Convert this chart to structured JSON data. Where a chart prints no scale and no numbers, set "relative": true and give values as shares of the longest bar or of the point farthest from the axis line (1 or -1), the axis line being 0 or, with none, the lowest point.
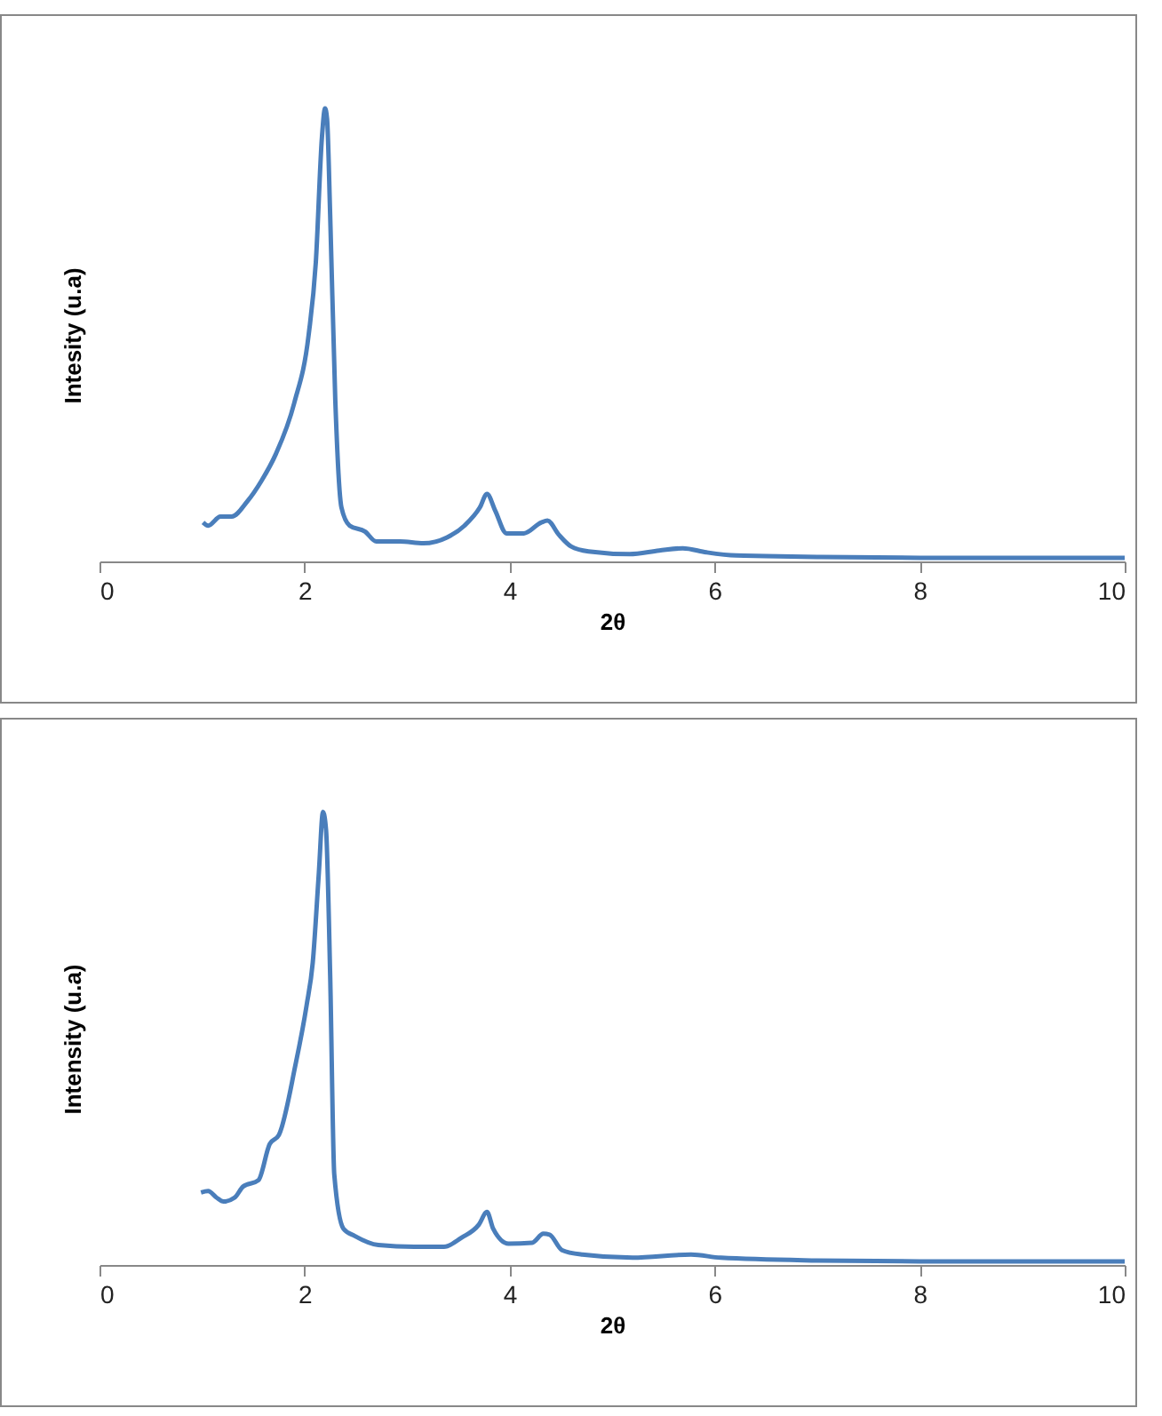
{
  "chart_data": [
    {
      "type": "line",
      "xlabel": "2θ",
      "ylabel": "Intesity (u.a)",
      "relative": true,
      "color": "#4a7ebb",
      "xlim": [
        0,
        10
      ],
      "xticks": [
        0,
        2,
        4,
        6,
        8,
        10
      ],
      "grid": false,
      "x": [
        1.01,
        1.06,
        1.18,
        1.29,
        1.44,
        1.58,
        1.72,
        1.9,
        2.04,
        2.11,
        2.17,
        2.2,
        2.22,
        2.25,
        2.3,
        2.36,
        2.44,
        2.59,
        2.7,
        2.93,
        3.16,
        3.39,
        3.56,
        3.71,
        3.78,
        3.86,
        3.97,
        4.14,
        4.31,
        4.37,
        4.48,
        4.6,
        4.77,
        5.17,
        5.46,
        5.69,
        5.92,
        6.21,
        6.5,
        7,
        8,
        9,
        10
      ],
      "values": [
        0.086,
        0.079,
        0.099,
        0.099,
        0.132,
        0.178,
        0.237,
        0.35,
        0.5,
        0.66,
        0.937,
        1,
        0.976,
        0.765,
        0.356,
        0.119,
        0.079,
        0.066,
        0.044,
        0.044,
        0.04,
        0.053,
        0.079,
        0.119,
        0.149,
        0.112,
        0.062,
        0.062,
        0.086,
        0.09,
        0.059,
        0.033,
        0.022,
        0.016,
        0.024,
        0.029,
        0.02,
        0.013,
        0.012,
        0.01,
        0.008,
        0.008,
        0.008
      ]
    },
    {
      "type": "line",
      "xlabel": "2θ",
      "ylabel": "Intensity (u.a)",
      "relative": true,
      "color": "#4a7ebb",
      "xlim": [
        0,
        10
      ],
      "xticks": [
        0,
        2,
        4,
        6,
        8,
        10
      ],
      "grid": false,
      "x": [
        0.99,
        1.06,
        1.14,
        1.21,
        1.32,
        1.4,
        1.55,
        1.66,
        1.75,
        1.91,
        2.02,
        2.08,
        2.14,
        2.18,
        2.21,
        2.25,
        2.29,
        2.38,
        2.49,
        2.72,
        3.07,
        3.36,
        3.53,
        3.7,
        3.78,
        3.84,
        3.99,
        4.22,
        4.33,
        4.39,
        4.51,
        4.71,
        5.2,
        5.77,
        6.06,
        7,
        8,
        9,
        10
      ],
      "values": [
        0.16,
        0.163,
        0.149,
        0.14,
        0.149,
        0.173,
        0.187,
        0.267,
        0.287,
        0.44,
        0.573,
        0.667,
        0.867,
        1,
        0.96,
        0.64,
        0.2,
        0.08,
        0.064,
        0.044,
        0.04,
        0.04,
        0.06,
        0.089,
        0.117,
        0.08,
        0.047,
        0.049,
        0.069,
        0.067,
        0.033,
        0.023,
        0.016,
        0.023,
        0.016,
        0.01,
        0.008,
        0.008,
        0.008
      ]
    }
  ]
}
